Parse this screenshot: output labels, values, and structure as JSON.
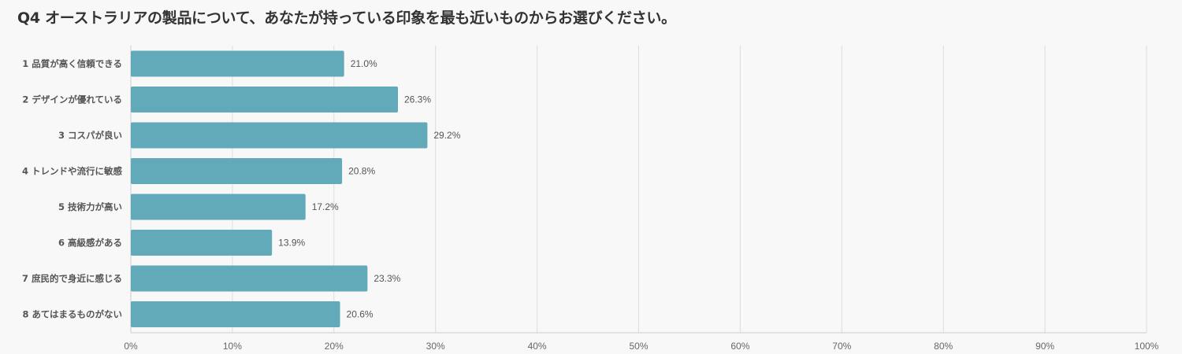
{
  "chart_data": {
    "type": "bar",
    "orientation": "horizontal",
    "title": "Q4 オーストラリアの製品について、あなたが持っている印象を最も近いものからお選びください。",
    "categories": [
      "1 品質が高く信頼できる",
      "2 デザインが優れている",
      "3 コスパが良い",
      "4 トレンドや流行に敏感",
      "5 技術力が高い",
      "6 高級感がある",
      "7 庶民的で身近に感じる",
      "8 あてはまるものがない"
    ],
    "values": [
      21.0,
      26.3,
      29.2,
      20.8,
      17.2,
      13.9,
      23.3,
      20.6
    ],
    "value_labels": [
      "21.0%",
      "26.3%",
      "29.2%",
      "20.8%",
      "17.2%",
      "13.9%",
      "23.3%",
      "20.6%"
    ],
    "xlim": [
      0,
      100
    ],
    "x_ticks": [
      0,
      10,
      20,
      30,
      40,
      50,
      60,
      70,
      80,
      90,
      100
    ],
    "x_tick_labels": [
      "0%",
      "10%",
      "20%",
      "30%",
      "40%",
      "50%",
      "60%",
      "70%",
      "80%",
      "90%",
      "100%"
    ],
    "grid": "vertical",
    "legend": "none",
    "colors": {
      "bar": "#62a9b9",
      "grid": "#dddddd",
      "axis": "#cccccc",
      "background": "#f8f8f8"
    }
  }
}
